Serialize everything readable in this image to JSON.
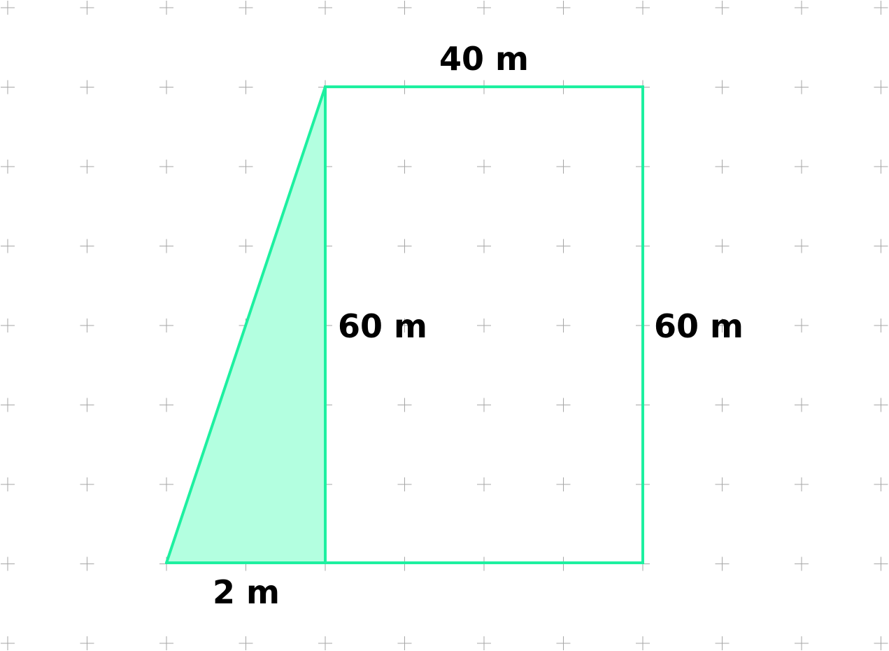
{
  "figure": {
    "labels": {
      "top_width": "40 m",
      "inner_height": "60 m",
      "right_height": "60 m",
      "bottom_base": "2 m"
    },
    "colors": {
      "stroke": "#1df0a0",
      "triangle_fill": "#b3ffe0",
      "grid_marks": "#a6a6a6",
      "text": "#000000",
      "background": "#ffffff"
    }
  }
}
